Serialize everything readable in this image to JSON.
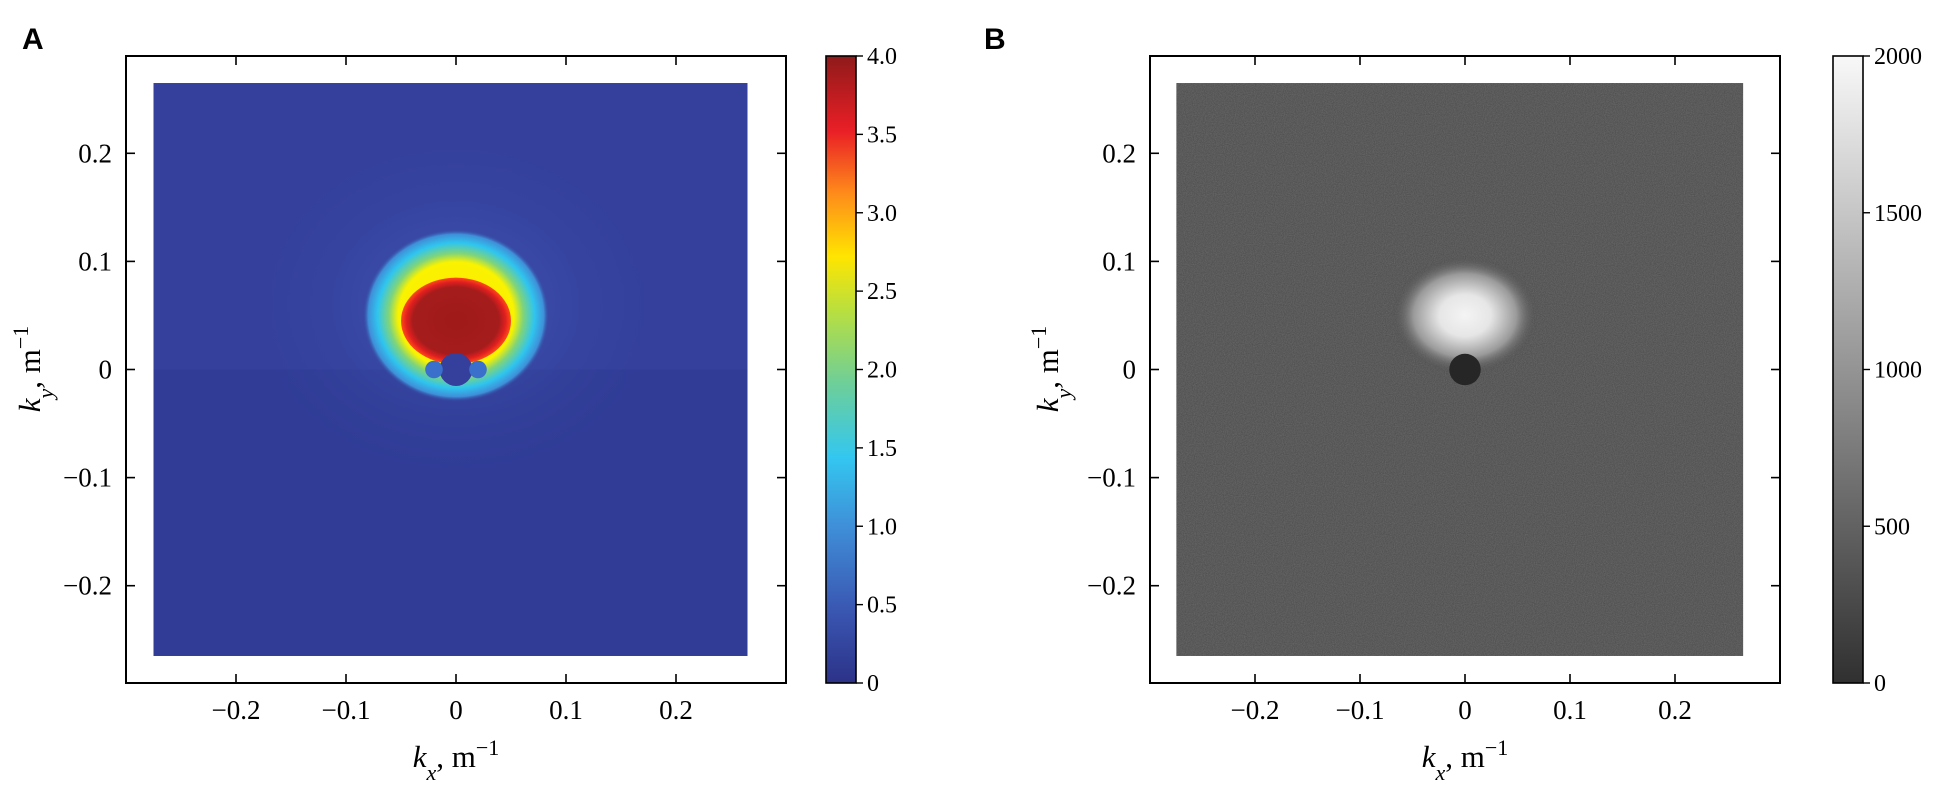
{
  "figure": {
    "panels": [
      {
        "label": "A",
        "colormap": "jet"
      },
      {
        "label": "B",
        "colormap": "gray"
      }
    ]
  },
  "chart_data": [
    {
      "type": "heatmap",
      "panel": "A",
      "xlabel": {
        "var": "k",
        "sub": "x",
        "unit": "m",
        "sup": "−1"
      },
      "ylabel": {
        "var": "k",
        "sub": "y",
        "unit": "m",
        "sup": "−1"
      },
      "xlim": [
        -0.3,
        0.3
      ],
      "ylim": [
        -0.29,
        0.29
      ],
      "data_extent": {
        "x": [
          -0.275,
          0.265
        ],
        "y": [
          -0.265,
          0.265
        ]
      },
      "xticks": [
        -0.2,
        -0.1,
        0,
        0.1,
        0.2
      ],
      "xtick_labels": [
        "−0.2",
        "−0.1",
        "0",
        "0.1",
        "0.2"
      ],
      "yticks": [
        0.2,
        0.1,
        0,
        -0.1,
        -0.2
      ],
      "ytick_labels": [
        "0.2",
        "0.1",
        "0",
        "−0.1",
        "−0.2"
      ],
      "colorbar": {
        "range": [
          0,
          4.0
        ],
        "ticks": [
          0,
          0.5,
          1.0,
          1.5,
          2.0,
          2.5,
          3.0,
          3.5,
          4.0
        ],
        "tick_labels": [
          "0",
          "0.5",
          "1.0",
          "1.5",
          "2.0",
          "2.5",
          "3.0",
          "3.5",
          "4.0"
        ]
      },
      "features": {
        "background_value": 0.2,
        "peak": {
          "center": [
            0.0,
            0.045
          ],
          "radius": [
            0.05,
            0.04
          ],
          "value": 4.0
        },
        "halo": {
          "center": [
            0.0,
            0.05
          ],
          "radius": [
            0.085,
            0.08
          ],
          "value": 1.3
        },
        "notch": {
          "center": [
            0.0,
            0.0
          ],
          "radius": 0.015
        }
      }
    },
    {
      "type": "heatmap",
      "panel": "B",
      "xlabel": {
        "var": "k",
        "sub": "x",
        "unit": "m",
        "sup": "−1"
      },
      "ylabel": {
        "var": "k",
        "sub": "y",
        "unit": "m",
        "sup": "−1"
      },
      "xlim": [
        -0.3,
        0.3
      ],
      "ylim": [
        -0.29,
        0.29
      ],
      "data_extent": {
        "x": [
          -0.275,
          0.265
        ],
        "y": [
          -0.265,
          0.265
        ]
      },
      "xticks": [
        -0.2,
        -0.1,
        0,
        0.1,
        0.2
      ],
      "xtick_labels": [
        "−0.2",
        "−0.1",
        "0",
        "0.1",
        "0.2"
      ],
      "yticks": [
        0.2,
        0.1,
        0,
        -0.1,
        -0.2
      ],
      "ytick_labels": [
        "0.2",
        "0.1",
        "0",
        "−0.1",
        "−0.2"
      ],
      "colorbar": {
        "range": [
          0,
          2000
        ],
        "ticks": [
          0,
          500,
          1000,
          1500,
          2000
        ],
        "tick_labels": [
          "0",
          "500",
          "1000",
          "1500",
          "2000"
        ]
      },
      "features": {
        "background_value": 350,
        "peak": {
          "center": [
            0.0,
            0.05
          ],
          "radius": [
            0.07,
            0.055
          ],
          "value": 2000
        },
        "notch": {
          "center": [
            0.0,
            0.0
          ],
          "radius": 0.015
        }
      }
    }
  ]
}
